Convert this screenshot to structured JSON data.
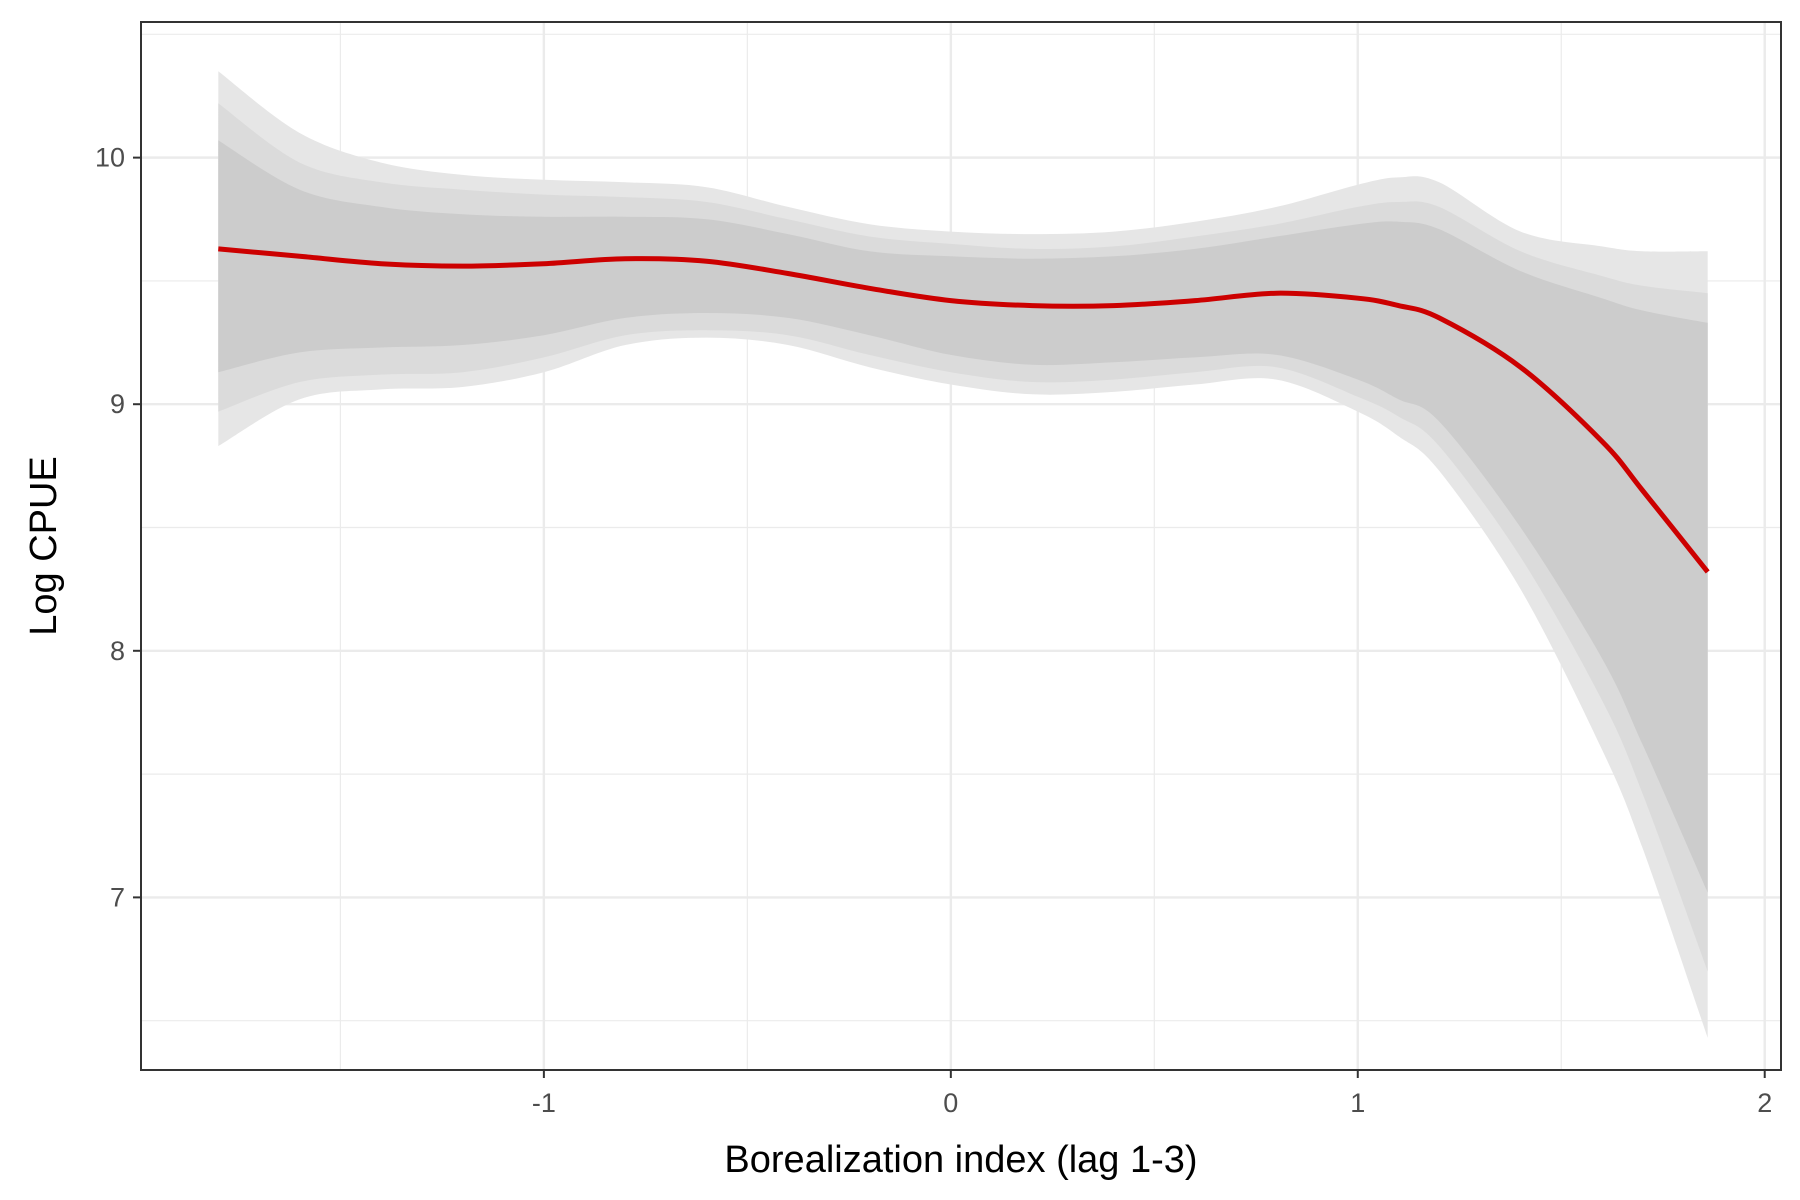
{
  "chart_data": {
    "type": "line",
    "xlabel": "Borealization index (lag 1-3)",
    "ylabel": "Log CPUE",
    "xlim": [
      -1.99,
      2.04
    ],
    "ylim": [
      6.3,
      10.55
    ],
    "x_ticks": [
      -1,
      0,
      1,
      2
    ],
    "x_tick_labels": [
      "-1",
      "0",
      "1",
      "2"
    ],
    "y_ticks": [
      7,
      8,
      9,
      10
    ],
    "y_tick_labels": [
      "7",
      "8",
      "9",
      "10"
    ],
    "grid": true,
    "legend": "none",
    "colors": {
      "line": "#cc0000",
      "band_outer": "#e6e6e6",
      "band_middle": "#dbdbdb",
      "band_inner": "#cccccc",
      "grid": "#ebebeb",
      "border": "#333333"
    },
    "series": [
      {
        "x": [
          -1.8,
          -1.6,
          -1.4,
          -1.2,
          -1.0,
          -0.8,
          -0.6,
          -0.4,
          -0.2,
          0.0,
          0.2,
          0.4,
          0.6,
          0.8,
          1.0,
          1.1,
          1.2,
          1.4,
          1.6,
          1.7,
          1.86
        ],
        "y": [
          9.63,
          9.6,
          9.57,
          9.56,
          9.57,
          9.59,
          9.58,
          9.53,
          9.47,
          9.42,
          9.4,
          9.4,
          9.42,
          9.45,
          9.43,
          9.4,
          9.35,
          9.15,
          8.85,
          8.65,
          8.32
        ]
      }
    ],
    "bands": [
      {
        "level": "outer",
        "x": [
          -1.8,
          -1.6,
          -1.4,
          -1.2,
          -1.0,
          -0.8,
          -0.6,
          -0.4,
          -0.2,
          0.0,
          0.2,
          0.4,
          0.6,
          0.8,
          1.0,
          1.1,
          1.2,
          1.4,
          1.6,
          1.7,
          1.86
        ],
        "upper": [
          10.35,
          10.1,
          9.98,
          9.93,
          9.91,
          9.9,
          9.88,
          9.8,
          9.73,
          9.7,
          9.69,
          9.7,
          9.74,
          9.8,
          9.89,
          9.92,
          9.9,
          9.7,
          9.64,
          9.62,
          9.62
        ],
        "lower": [
          8.83,
          9.02,
          9.06,
          9.07,
          9.13,
          9.24,
          9.27,
          9.24,
          9.15,
          9.08,
          9.04,
          9.05,
          9.08,
          9.1,
          8.97,
          8.87,
          8.73,
          8.25,
          7.6,
          7.2,
          6.43
        ]
      },
      {
        "level": "middle",
        "x": [
          -1.8,
          -1.6,
          -1.4,
          -1.2,
          -1.0,
          -0.8,
          -0.6,
          -0.4,
          -0.2,
          0.0,
          0.2,
          0.4,
          0.6,
          0.8,
          1.0,
          1.1,
          1.2,
          1.4,
          1.6,
          1.7,
          1.86
        ],
        "upper": [
          10.22,
          9.98,
          9.9,
          9.87,
          9.85,
          9.84,
          9.82,
          9.75,
          9.68,
          9.65,
          9.63,
          9.64,
          9.68,
          9.73,
          9.8,
          9.82,
          9.8,
          9.62,
          9.52,
          9.48,
          9.45
        ],
        "lower": [
          8.97,
          9.09,
          9.12,
          9.13,
          9.19,
          9.28,
          9.3,
          9.28,
          9.2,
          9.13,
          9.09,
          9.1,
          9.13,
          9.15,
          9.03,
          8.95,
          8.83,
          8.38,
          7.8,
          7.42,
          6.7
        ]
      },
      {
        "level": "inner",
        "x": [
          -1.8,
          -1.6,
          -1.4,
          -1.2,
          -1.0,
          -0.8,
          -0.6,
          -0.4,
          -0.2,
          0.0,
          0.2,
          0.4,
          0.6,
          0.8,
          1.0,
          1.1,
          1.2,
          1.4,
          1.6,
          1.7,
          1.86
        ],
        "upper": [
          10.07,
          9.87,
          9.8,
          9.77,
          9.76,
          9.76,
          9.75,
          9.69,
          9.62,
          9.6,
          9.59,
          9.6,
          9.63,
          9.68,
          9.73,
          9.74,
          9.71,
          9.54,
          9.43,
          9.38,
          9.33
        ],
        "lower": [
          9.13,
          9.21,
          9.23,
          9.24,
          9.28,
          9.35,
          9.37,
          9.35,
          9.28,
          9.2,
          9.16,
          9.17,
          9.19,
          9.2,
          9.1,
          9.02,
          8.93,
          8.5,
          7.97,
          7.62,
          7.02
        ]
      }
    ]
  }
}
